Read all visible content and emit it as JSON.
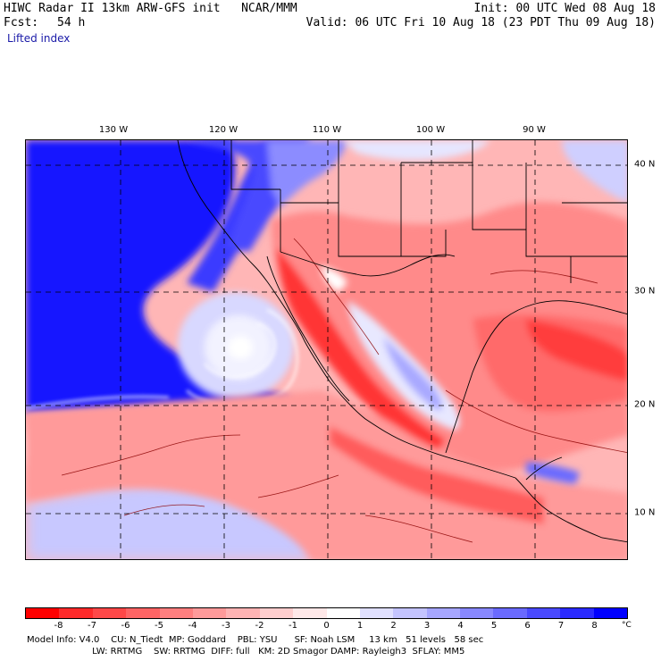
{
  "header": {
    "title_left": "HIWC Radar II 13km ARW-GFS init   NCAR/MMM",
    "init": "Init: 00 UTC Wed 08 Aug 18",
    "fcst_label": "Fcst:",
    "fcst_value": "54 h",
    "valid": "Valid: 06 UTC Fri 10 Aug 18 (23 PDT Thu 09 Aug 18)",
    "field_name": "Lifted index"
  },
  "map": {
    "longitude_labels": [
      "130 W",
      "120 W",
      "110 W",
      "100 W",
      "90 W"
    ],
    "latitude_labels": [
      "40 N",
      "30 N",
      "20 N",
      "10 N"
    ],
    "gridline_style": "dashed",
    "region": "Eastern Pacific, Mexico, southern United States, Gulf of Mexico, Central America",
    "colors": {
      "ocean_stable": "#1414ff",
      "unstable": "#ff1a1a",
      "neutral": "#ffffff",
      "border_lines": "#000000"
    }
  },
  "colorbar": {
    "tick_labels": [
      "-8",
      "-7",
      "-6",
      "-5",
      "-4",
      "-3",
      "-2",
      "-1",
      "0",
      "1",
      "2",
      "3",
      "4",
      "5",
      "6",
      "7",
      "8"
    ],
    "unit": "°C",
    "colors": [
      "#ff0000",
      "#ff2a2a",
      "#ff4848",
      "#ff6464",
      "#ff7f7f",
      "#ff9a9a",
      "#ffb4b4",
      "#ffcece",
      "#ffe8e8",
      "#ffffff",
      "#e0e0ff",
      "#c4c4ff",
      "#a6a6ff",
      "#8888ff",
      "#6a6aff",
      "#4a4aff",
      "#2a2aff",
      "#0000ff"
    ]
  },
  "footer": {
    "line1": "Model Info: V4.0    CU: N_Tiedt  MP: Goddard    PBL: YSU      SF: Noah LSM     13 km   51 levels   58 sec",
    "line2": "                       LW: RRTMG    SW: RRTMG  DIFF: full   KM: 2D Smagor DAMP: Rayleigh3  SFLAY: MM5"
  }
}
